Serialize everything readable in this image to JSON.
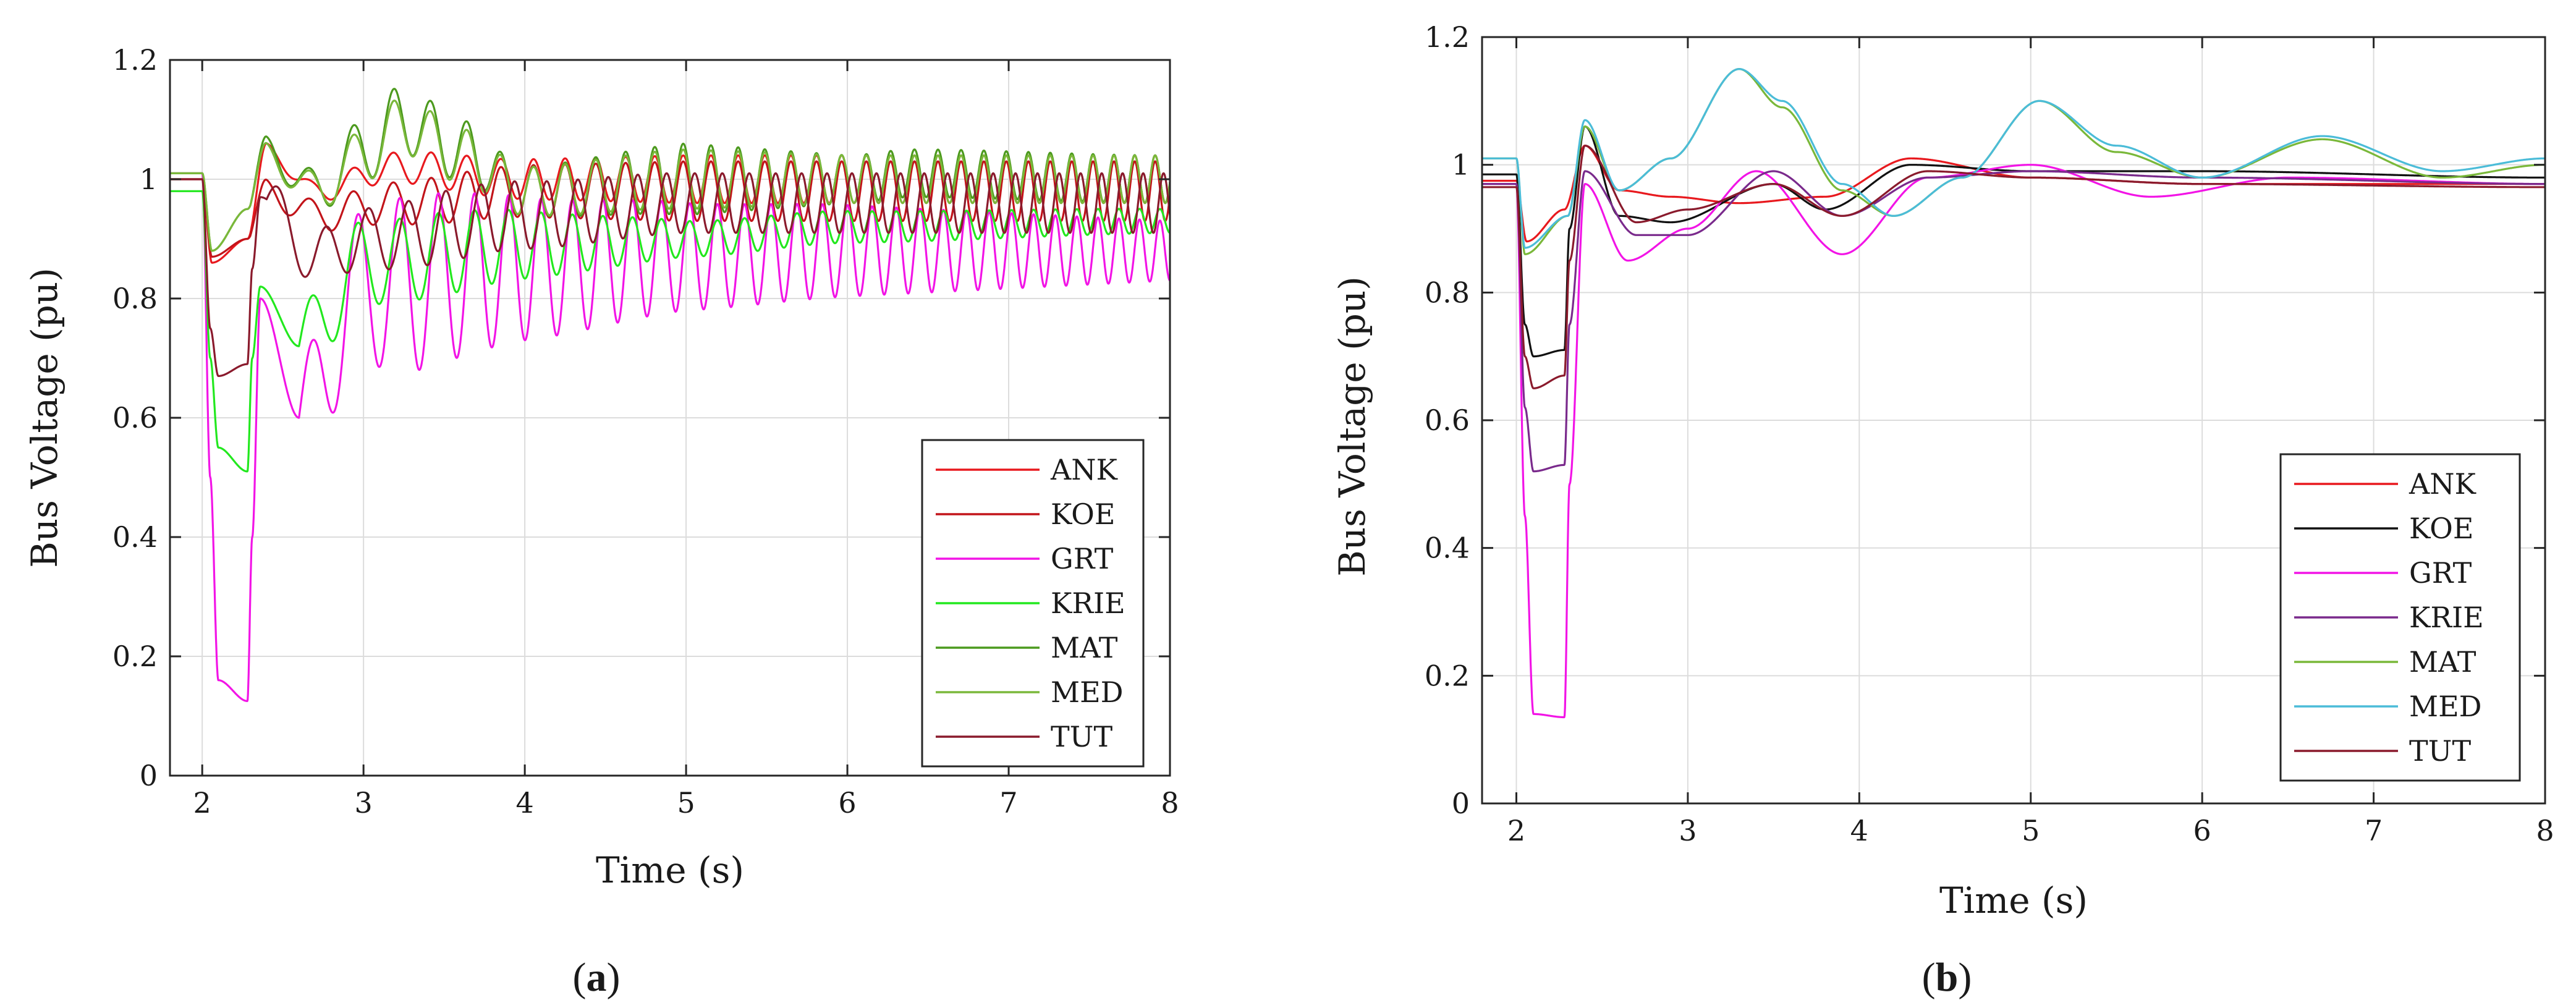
{
  "chart_data": [
    {
      "type": "line",
      "panel_label": "a",
      "xlabel": "Time (s)",
      "ylabel": "Bus Voltage (pu)",
      "xlim": [
        1.8,
        8
      ],
      "ylim": [
        0,
        1.2
      ],
      "xticks": [
        2,
        3,
        4,
        5,
        6,
        7,
        8
      ],
      "yticks": [
        0,
        0.2,
        0.4,
        0.6,
        0.8,
        1,
        1.2
      ],
      "xtick_labels": [
        "2",
        "3",
        "4",
        "5",
        "6",
        "7",
        "8"
      ],
      "ytick_labels": [
        "0",
        "0.2",
        "0.4",
        "0.6",
        "0.8",
        "1",
        "1.2"
      ],
      "grid": true,
      "legend_position": "lower-right",
      "series": [
        {
          "name": "ANK",
          "color": "#e8191e",
          "pre": 1.0,
          "x": [
            2.0,
            2.06,
            2.28,
            2.4,
            2.7,
            3.2,
            4.0,
            5.0,
            6.0,
            8.0
          ],
          "y": [
            1.0,
            0.86,
            0.9,
            1.05,
            0.98,
            1.02,
            1.0,
            1.0,
            1.0,
            1.0
          ],
          "osc": {
            "start": 2.3,
            "amp": [
              [
                2.3,
                0.01
              ],
              [
                3.5,
                0.03
              ],
              [
                5.0,
                0.04
              ],
              [
                8.0,
                0.04
              ]
            ],
            "freq": [
              [
                2.3,
                3.2
              ],
              [
                4.0,
                5.0
              ],
              [
                8.0,
                8.0
              ]
            ]
          }
        },
        {
          "name": "KOE",
          "color": "#c2141a",
          "pre": 1.0,
          "x": [
            2.0,
            2.06,
            2.28,
            2.4,
            2.7,
            3.2,
            4.0,
            5.0,
            6.0,
            8.0
          ],
          "y": [
            1.0,
            0.87,
            0.9,
            0.98,
            0.94,
            0.96,
            0.98,
            0.98,
            0.98,
            0.98
          ],
          "osc": {
            "start": 2.3,
            "amp": [
              [
                2.3,
                0.02
              ],
              [
                3.5,
                0.04
              ],
              [
                5.0,
                0.05
              ],
              [
                8.0,
                0.05
              ]
            ],
            "freq": [
              [
                2.3,
                3.2
              ],
              [
                4.0,
                5.0
              ],
              [
                8.0,
                8.0
              ]
            ]
          }
        },
        {
          "name": "GRT",
          "color": "#f214e6",
          "pre": 1.01,
          "x": [
            2.0,
            2.05,
            2.1,
            2.28,
            2.31,
            2.36,
            2.6,
            3.0,
            4.0,
            5.0,
            6.0,
            8.0
          ],
          "y": [
            1.01,
            0.5,
            0.16,
            0.125,
            0.4,
            0.8,
            0.6,
            0.82,
            0.85,
            0.87,
            0.88,
            0.88
          ],
          "osc": {
            "start": 2.6,
            "amp": [
              [
                2.6,
                0.1
              ],
              [
                3.3,
                0.15
              ],
              [
                4.0,
                0.12
              ],
              [
                5.0,
                0.09
              ],
              [
                8.0,
                0.05
              ]
            ],
            "freq": [
              [
                2.6,
                3.2
              ],
              [
                4.0,
                5.0
              ],
              [
                8.0,
                8.0
              ]
            ]
          }
        },
        {
          "name": "KRIE",
          "color": "#22e81e",
          "pre": 0.98,
          "x": [
            2.0,
            2.05,
            2.1,
            2.28,
            2.31,
            2.36,
            2.6,
            3.0,
            4.0,
            5.0,
            6.0,
            8.0
          ],
          "y": [
            0.98,
            0.7,
            0.55,
            0.51,
            0.7,
            0.82,
            0.72,
            0.86,
            0.89,
            0.9,
            0.92,
            0.93
          ],
          "osc": {
            "start": 2.6,
            "amp": [
              [
                2.6,
                0.07
              ],
              [
                3.5,
                0.07
              ],
              [
                5.0,
                0.03
              ],
              [
                8.0,
                0.02
              ]
            ],
            "freq": [
              [
                2.6,
                3.2
              ],
              [
                4.0,
                5.0
              ],
              [
                8.0,
                8.0
              ]
            ]
          }
        },
        {
          "name": "MAT",
          "color": "#4c9a1e",
          "pre": 1.01,
          "x": [
            2.0,
            2.06,
            2.28,
            2.4,
            2.7,
            3.0,
            3.25,
            3.6,
            4.0,
            5.0,
            6.0,
            6.4,
            8.0
          ],
          "y": [
            1.01,
            0.88,
            0.95,
            1.05,
            0.98,
            1.05,
            1.1,
            1.05,
            0.98,
            1.0,
            1.0,
            1.01,
            1.0
          ],
          "osc": {
            "start": 2.3,
            "amp": [
              [
                2.3,
                0.02
              ],
              [
                3.2,
                0.06
              ],
              [
                4.0,
                0.04
              ],
              [
                5.0,
                0.06
              ],
              [
                6.0,
                0.04
              ],
              [
                8.0,
                0.04
              ]
            ],
            "freq": [
              [
                2.3,
                3.2
              ],
              [
                4.0,
                5.0
              ],
              [
                8.0,
                8.0
              ]
            ]
          }
        },
        {
          "name": "MED",
          "color": "#7ab83a",
          "pre": 1.01,
          "x": [
            2.0,
            2.06,
            2.28,
            2.4,
            2.7,
            3.0,
            3.25,
            3.6,
            4.0,
            5.0,
            6.0,
            6.4,
            8.0
          ],
          "y": [
            1.01,
            0.88,
            0.95,
            1.04,
            0.98,
            1.04,
            1.09,
            1.04,
            0.98,
            1.0,
            1.0,
            1.0,
            1.0
          ],
          "osc": {
            "start": 2.3,
            "amp": [
              [
                2.3,
                0.02
              ],
              [
                3.2,
                0.05
              ],
              [
                4.0,
                0.04
              ],
              [
                5.0,
                0.05
              ],
              [
                6.0,
                0.04
              ],
              [
                8.0,
                0.04
              ]
            ],
            "freq": [
              [
                2.3,
                3.2
              ],
              [
                4.0,
                5.0
              ],
              [
                8.0,
                8.0
              ]
            ]
          }
        },
        {
          "name": "TUT",
          "color": "#8a1a2c",
          "pre": 1.0,
          "x": [
            2.0,
            2.05,
            2.1,
            2.28,
            2.31,
            2.36,
            2.7,
            3.0,
            4.0,
            5.0,
            6.0,
            8.0
          ],
          "y": [
            1.0,
            0.75,
            0.67,
            0.69,
            0.85,
            0.97,
            0.87,
            0.9,
            0.94,
            0.96,
            0.96,
            0.96
          ],
          "osc": {
            "start": 2.4,
            "amp": [
              [
                2.4,
                0.04
              ],
              [
                3.5,
                0.06
              ],
              [
                5.0,
                0.05
              ],
              [
                8.0,
                0.05
              ]
            ],
            "freq": [
              [
                2.4,
                3.2
              ],
              [
                4.0,
                5.0
              ],
              [
                8.0,
                8.0
              ]
            ]
          }
        }
      ]
    },
    {
      "type": "line",
      "panel_label": "b",
      "xlabel": "Time (s)",
      "ylabel": "Bus Voltage (pu)",
      "xlim": [
        1.8,
        8
      ],
      "ylim": [
        0,
        1.2
      ],
      "xticks": [
        2,
        3,
        4,
        5,
        6,
        7,
        8
      ],
      "yticks": [
        0,
        0.2,
        0.4,
        0.6,
        0.8,
        1,
        1.2
      ],
      "xtick_labels": [
        "2",
        "3",
        "4",
        "5",
        "6",
        "7",
        "8"
      ],
      "ytick_labels": [
        "0",
        "0.2",
        "0.4",
        "0.6",
        "0.8",
        "1",
        "1.2"
      ],
      "grid": true,
      "legend_position": "lower-right",
      "series": [
        {
          "name": "ANK",
          "color": "#e8191e",
          "pre": 0.975,
          "x": [
            2.0,
            2.06,
            2.28,
            2.4,
            2.6,
            2.9,
            3.3,
            3.8,
            4.3,
            5.0,
            6.0,
            7.0,
            8.0
          ],
          "y": [
            0.975,
            0.88,
            0.93,
            1.03,
            0.96,
            0.95,
            0.94,
            0.95,
            1.01,
            0.98,
            0.97,
            0.97,
            0.97
          ]
        },
        {
          "name": "KOE",
          "color": "#111111",
          "pre": 0.985,
          "x": [
            2.0,
            2.05,
            2.1,
            2.28,
            2.31,
            2.4,
            2.6,
            2.9,
            3.5,
            3.8,
            4.3,
            5.0,
            6.0,
            8.0
          ],
          "y": [
            0.985,
            0.75,
            0.7,
            0.71,
            0.9,
            1.06,
            0.92,
            0.91,
            0.97,
            0.93,
            1.0,
            0.99,
            0.99,
            0.98
          ]
        },
        {
          "name": "GRT",
          "color": "#f214e6",
          "pre": 0.97,
          "x": [
            2.0,
            2.05,
            2.1,
            2.28,
            2.31,
            2.4,
            2.65,
            3.0,
            3.4,
            3.9,
            4.4,
            5.0,
            5.7,
            6.5,
            8.0
          ],
          "y": [
            0.97,
            0.45,
            0.14,
            0.135,
            0.5,
            0.97,
            0.85,
            0.9,
            0.99,
            0.86,
            0.98,
            1.0,
            0.95,
            0.98,
            0.97
          ]
        },
        {
          "name": "KRIE",
          "color": "#7a2a8c",
          "pre": 0.97,
          "x": [
            2.0,
            2.05,
            2.1,
            2.28,
            2.31,
            2.4,
            2.7,
            3.0,
            3.5,
            3.9,
            4.4,
            5.0,
            6.0,
            8.0
          ],
          "y": [
            0.97,
            0.62,
            0.52,
            0.53,
            0.75,
            0.99,
            0.89,
            0.89,
            0.99,
            0.92,
            0.98,
            0.99,
            0.98,
            0.97
          ]
        },
        {
          "name": "MAT",
          "color": "#7ab83a",
          "pre": 1.01,
          "x": [
            2.0,
            2.05,
            2.3,
            2.4,
            2.6,
            2.9,
            3.3,
            3.55,
            3.9,
            4.2,
            4.6,
            5.05,
            5.5,
            6.0,
            6.7,
            7.4,
            8.0
          ],
          "y": [
            1.01,
            0.86,
            0.92,
            1.06,
            0.96,
            1.01,
            1.15,
            1.09,
            0.96,
            0.92,
            0.98,
            1.1,
            1.02,
            0.98,
            1.04,
            0.98,
            1.0
          ]
        },
        {
          "name": "MED",
          "color": "#4bbcd8",
          "pre": 1.01,
          "x": [
            2.0,
            2.05,
            2.3,
            2.4,
            2.6,
            2.9,
            3.3,
            3.55,
            3.9,
            4.2,
            4.6,
            5.05,
            5.5,
            6.0,
            6.7,
            7.4,
            8.0
          ],
          "y": [
            1.01,
            0.87,
            0.92,
            1.07,
            0.96,
            1.01,
            1.15,
            1.1,
            0.97,
            0.92,
            0.98,
            1.1,
            1.03,
            0.98,
            1.045,
            0.99,
            1.01
          ]
        },
        {
          "name": "TUT",
          "color": "#8a1a2c",
          "pre": 0.965,
          "x": [
            2.0,
            2.05,
            2.1,
            2.28,
            2.31,
            2.4,
            2.7,
            3.0,
            3.5,
            3.9,
            4.4,
            5.0,
            6.0,
            8.0
          ],
          "y": [
            0.965,
            0.7,
            0.65,
            0.67,
            0.85,
            1.03,
            0.91,
            0.93,
            0.97,
            0.92,
            0.99,
            0.98,
            0.97,
            0.965
          ]
        }
      ]
    }
  ]
}
